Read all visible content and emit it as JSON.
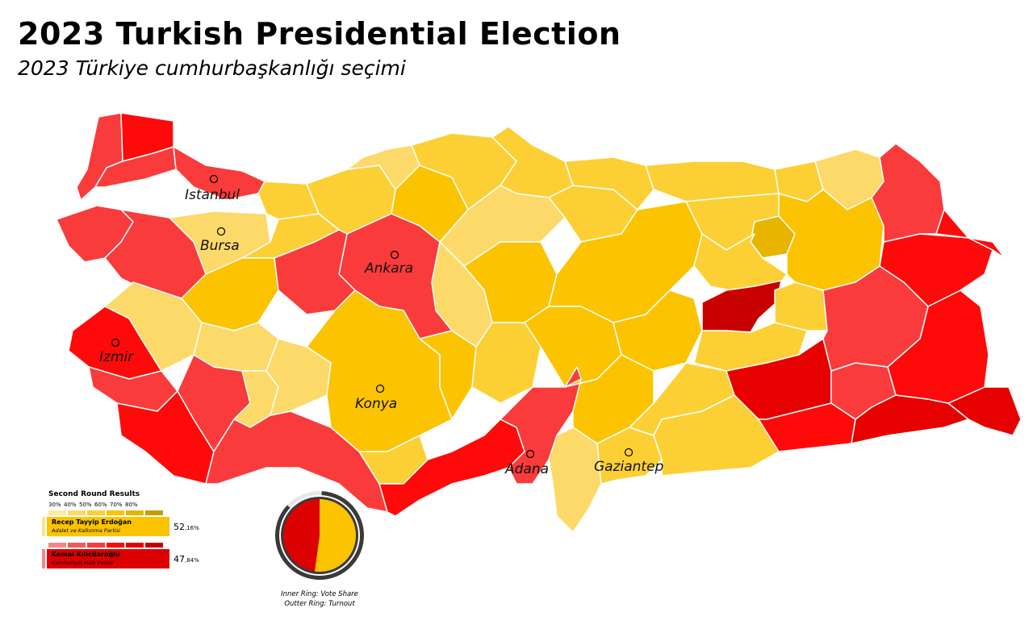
{
  "title": "2023 Turkish Presidential Election",
  "subtitle": "2023 Türkiye cumhurbaşkanlığı seçimi",
  "colors": {
    "erdogan_light": "#fdd96a",
    "erdogan_mid": "#fcd034",
    "erdogan_strong": "#fbc300",
    "erdogan_dark": "#e8b400",
    "kilicdaroglu_mid": "#f93b3b",
    "kilicdaroglu_strong": "#ff0a0a",
    "kilicdaroglu_dark": "#e60000",
    "kilicdaroglu_darkest": "#c80000",
    "border": "#ffffff"
  },
  "cities": [
    {
      "name": "Istanbul"
    },
    {
      "name": "Bursa"
    },
    {
      "name": "Ankara"
    },
    {
      "name": "Izmir"
    },
    {
      "name": "Konya"
    },
    {
      "name": "Adana"
    },
    {
      "name": "Gaziantep"
    }
  ],
  "legend": {
    "title": "Second Round Results",
    "scale": [
      "30%",
      "40%",
      "50%",
      "60%",
      "70%",
      "80%"
    ],
    "candidates": [
      {
        "name": "Recep Tayyip Erdoğan",
        "party": "Adalet ve Kalkınma Partisi",
        "pct_main": "52",
        "pct_decimal": ",16%",
        "share": 52.16,
        "color": "#fbc300",
        "edge": "#fde38a"
      },
      {
        "name": "Kemal Kılıçdaroğlu",
        "party": "Cumhuriyet Halk Partisi",
        "pct_main": "47",
        "pct_decimal": ",84%",
        "share": 47.84,
        "color": "#dc0000",
        "edge": "#f48888"
      }
    ]
  },
  "ring": {
    "caption_inner": "Inner Ring: Vote Share",
    "caption_outer": "Outter Ring: Turnout"
  }
}
